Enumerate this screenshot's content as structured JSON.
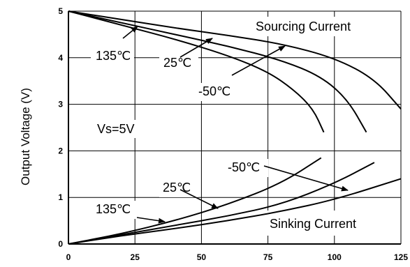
{
  "chart_data": {
    "type": "line",
    "xlim": [
      0,
      125
    ],
    "ylim": [
      0,
      5
    ],
    "x_ticks": [
      "0",
      "25",
      "50",
      "75",
      "100",
      "125"
    ],
    "y_ticks": [
      "0",
      "1",
      "2",
      "3",
      "4",
      "5"
    ],
    "ylabel": "Output Voltage (V)",
    "xlabel": "",
    "grid": true,
    "sourcing": {
      "label": "Sourcing Current",
      "series": [
        {
          "name": "135℃",
          "x": [
            0,
            20,
            40,
            60,
            80,
            100,
            115,
            125
          ],
          "y": [
            5.0,
            4.82,
            4.64,
            4.48,
            4.3,
            4.0,
            3.55,
            2.9
          ]
        },
        {
          "name": "25℃",
          "x": [
            0,
            20,
            40,
            60,
            80,
            95,
            105,
            112
          ],
          "y": [
            5.0,
            4.75,
            4.5,
            4.25,
            3.95,
            3.6,
            3.1,
            2.4
          ]
        },
        {
          "name": "-50℃",
          "x": [
            0,
            20,
            40,
            60,
            75,
            85,
            92,
            96
          ],
          "y": [
            5.0,
            4.7,
            4.4,
            4.05,
            3.7,
            3.3,
            2.9,
            2.4
          ]
        }
      ]
    },
    "sinking": {
      "label": "Sinking Current",
      "series": [
        {
          "name": "-50℃",
          "x": [
            0,
            20,
            40,
            60,
            80,
            95
          ],
          "y": [
            0,
            0.22,
            0.5,
            0.85,
            1.3,
            1.85
          ]
        },
        {
          "name": "25℃",
          "x": [
            0,
            20,
            40,
            60,
            80,
            100,
            115
          ],
          "y": [
            0,
            0.2,
            0.4,
            0.6,
            0.85,
            1.3,
            1.75
          ]
        },
        {
          "name": "135℃",
          "x": [
            0,
            20,
            40,
            60,
            80,
            100,
            125
          ],
          "y": [
            0,
            0.18,
            0.33,
            0.5,
            0.7,
            0.95,
            1.4
          ]
        }
      ]
    },
    "annotations": {
      "vs": "Vs=5V",
      "labels": [
        "135℃",
        "25℃",
        "-50℃",
        "-50℃",
        "25℃",
        "135℃"
      ]
    }
  }
}
